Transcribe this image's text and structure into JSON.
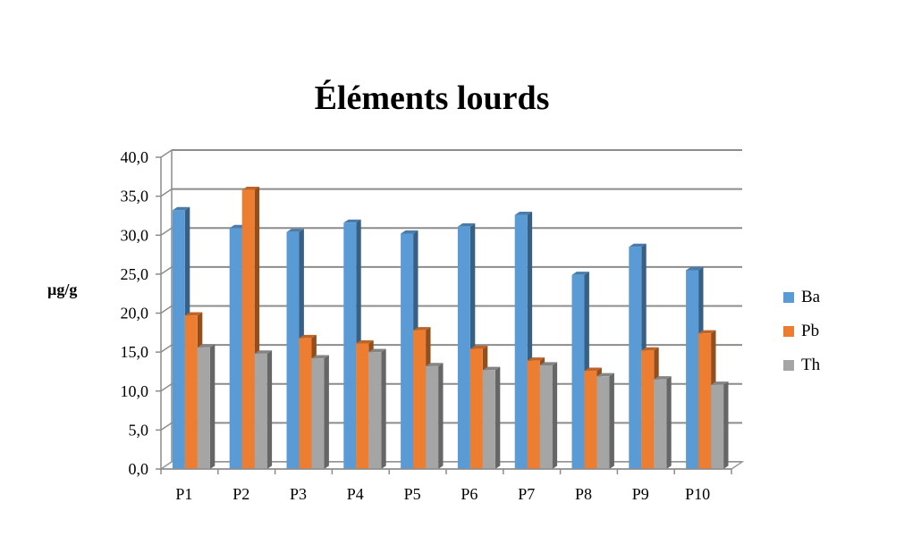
{
  "chart_data": {
    "type": "bar",
    "title": "Éléments lourds",
    "ylabel": "µg/g",
    "xlabel": "",
    "categories": [
      "P1",
      "P2",
      "P3",
      "P4",
      "P5",
      "P6",
      "P7",
      "P8",
      "P9",
      "P10"
    ],
    "series": [
      {
        "name": "Ba",
        "color": "#5B9BD5",
        "values": [
          33.2,
          30.9,
          30.4,
          31.6,
          30.2,
          31.1,
          32.6,
          24.9,
          28.5,
          25.5
        ]
      },
      {
        "name": "Pb",
        "color": "#ED7D31",
        "values": [
          19.7,
          35.8,
          16.8,
          16.1,
          17.8,
          15.4,
          13.9,
          12.6,
          15.2,
          17.4
        ]
      },
      {
        "name": "Th",
        "color": "#A5A5A5",
        "values": [
          15.6,
          14.8,
          14.2,
          15.0,
          13.2,
          12.7,
          13.3,
          11.9,
          11.5,
          10.8
        ]
      }
    ],
    "ylim": [
      0,
      40
    ],
    "yticks": [
      "0,0",
      "5,0",
      "10,0",
      "15,0",
      "20,0",
      "25,0",
      "30,0",
      "35,0",
      "40,0"
    ],
    "grid": true,
    "legend_position": "right"
  }
}
